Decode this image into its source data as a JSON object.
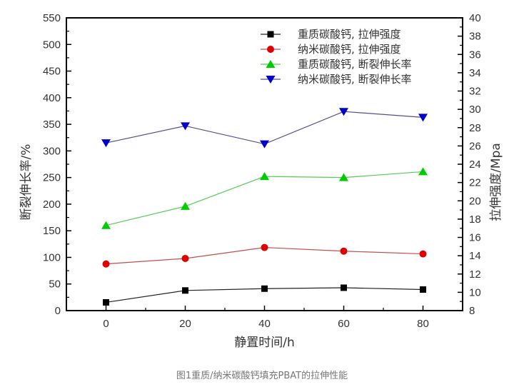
{
  "chart_data": {
    "type": "line",
    "title": "",
    "caption": "图1重质/纳米碳酸钙填充PBAT的拉伸性能",
    "xlabel": "静置时间/h",
    "ylabel": "断裂伸长率/%",
    "ylabel_right": "拉伸强度/Mpa",
    "x": [
      0,
      20,
      40,
      60,
      80
    ],
    "xlim": [
      -10,
      90
    ],
    "xticks": [
      0,
      20,
      40,
      60,
      80
    ],
    "ylim": [
      0,
      550
    ],
    "yticks": [
      0,
      50,
      100,
      150,
      200,
      250,
      300,
      350,
      400,
      450,
      500,
      550
    ],
    "ylim_right": [
      8,
      40
    ],
    "yticks_right": [
      8,
      10,
      12,
      14,
      16,
      18,
      20,
      22,
      24,
      26,
      28,
      30,
      32,
      34,
      36,
      38,
      40
    ],
    "grid": false,
    "legend_position": "upper right",
    "series": [
      {
        "name": "重质碳酸钙, 拉伸强度",
        "axis": "right",
        "marker": "square",
        "color": "#000000",
        "values": [
          8.9,
          10.2,
          10.4,
          10.5,
          10.3
        ]
      },
      {
        "name": "纳米碳酸钙, 拉伸强度",
        "axis": "right",
        "marker": "circle",
        "color": "#e00000",
        "values": [
          13.1,
          13.7,
          14.9,
          14.5,
          14.2
        ]
      },
      {
        "name": "重质碳酸钙, 断裂伸长率",
        "axis": "left",
        "marker": "triangle-up",
        "color": "#00cc00",
        "values": [
          160,
          196,
          252,
          250,
          261
        ]
      },
      {
        "name": "纳米碳酸钙, 断裂伸长率",
        "axis": "left",
        "marker": "triangle-down",
        "color": "#0000cc",
        "values": [
          315,
          347,
          313,
          374,
          363
        ]
      }
    ]
  }
}
